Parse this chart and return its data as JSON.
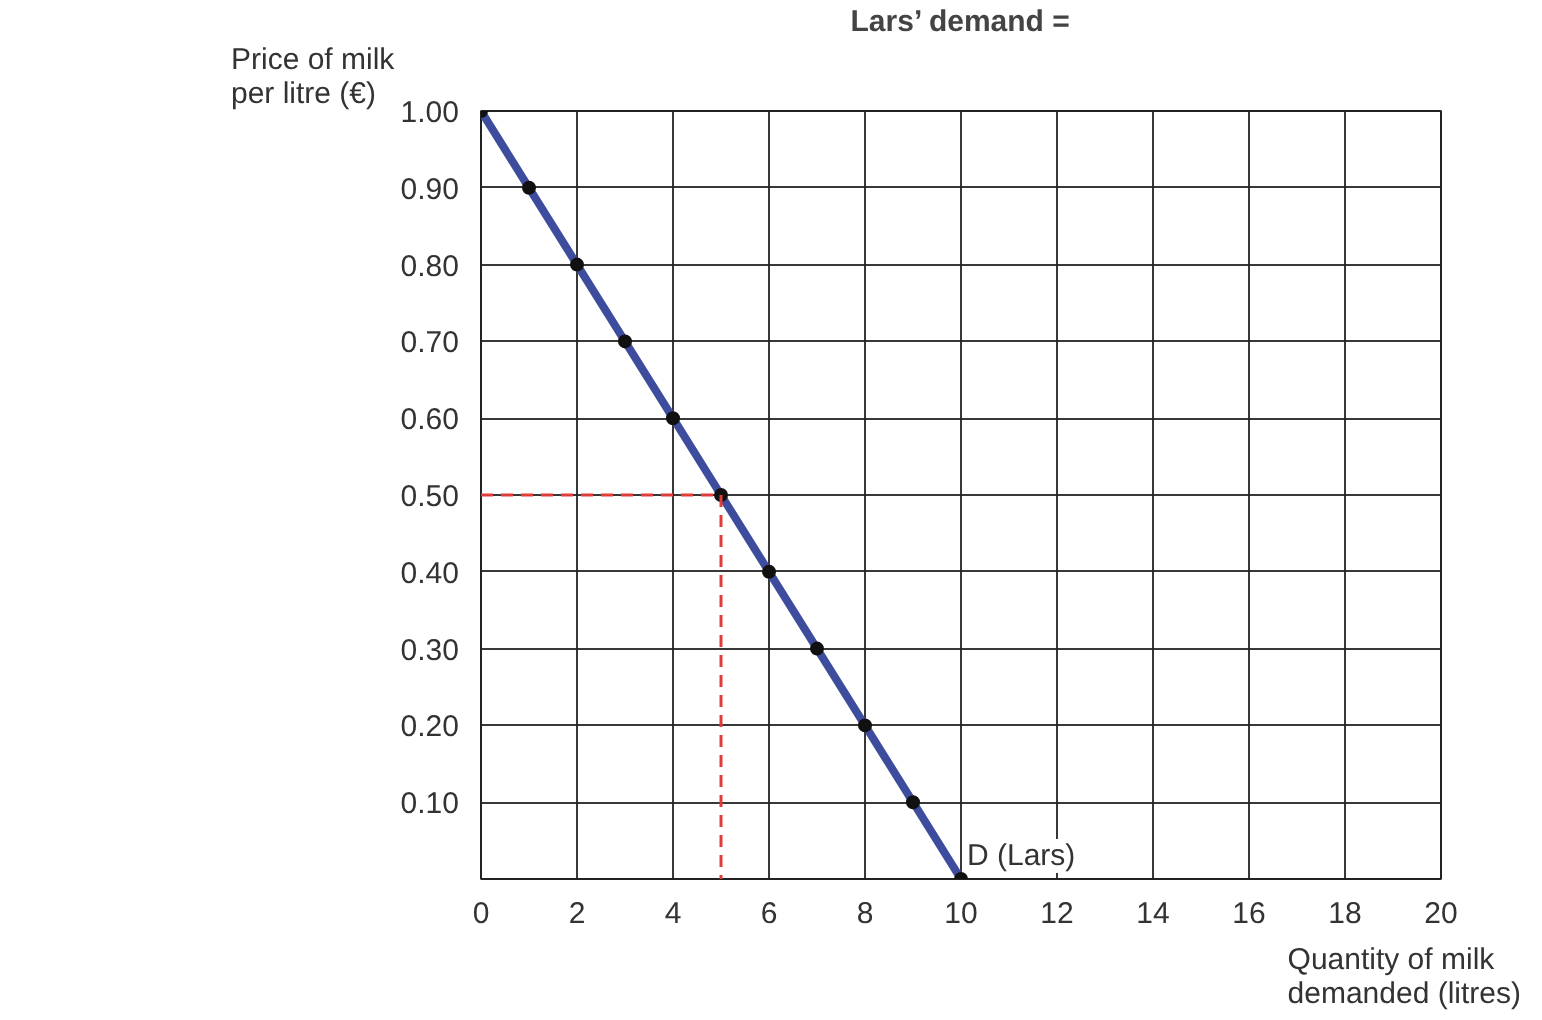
{
  "chart_data": {
    "type": "line",
    "title": "Lars’ demand =",
    "xlabel": "Quantity of milk\ndemanded (litres)",
    "ylabel": "Price of milk\nper litre (€)",
    "xlim": [
      0,
      20
    ],
    "ylim": [
      0,
      1
    ],
    "xticks": [
      0,
      2,
      4,
      6,
      8,
      10,
      12,
      14,
      16,
      18,
      20
    ],
    "yticks": [
      {
        "value": 0,
        "label": null
      },
      {
        "value": 0.1,
        "label": "0.10"
      },
      {
        "value": 0.2,
        "label": "0.20"
      },
      {
        "value": 0.3,
        "label": "0.30"
      },
      {
        "value": 0.4,
        "label": "0.40"
      },
      {
        "value": 0.5,
        "label": "0.50"
      },
      {
        "value": 0.6,
        "label": "0.60"
      },
      {
        "value": 0.7,
        "label": "0.70"
      },
      {
        "value": 0.8,
        "label": "0.80"
      },
      {
        "value": 0.9,
        "label": "0.90"
      },
      {
        "value": 1,
        "label": "1.00"
      }
    ],
    "grid": true,
    "series": [
      {
        "name": "D (Lars)",
        "color": "#3e4c9e",
        "x": [
          0,
          1,
          2,
          3,
          4,
          5,
          6,
          7,
          8,
          9,
          10
        ],
        "values": [
          1.0,
          0.9,
          0.8,
          0.7,
          0.6,
          0.5,
          0.4,
          0.3,
          0.2,
          0.1,
          0.0
        ],
        "marker": "circle",
        "line_style": "solid"
      },
      {
        "color": "#e03c3c",
        "x": [
          0,
          5,
          5
        ],
        "values": [
          0.5,
          0.5,
          0
        ],
        "marker": "none",
        "line_style": "dashed"
      }
    ]
  }
}
